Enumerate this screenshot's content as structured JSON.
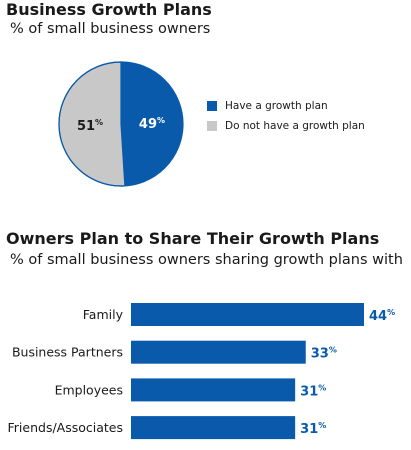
{
  "colors": {
    "blue": "#0a5aab",
    "gray": "#c8c8c8",
    "text": "#1a1a1a"
  },
  "chart_data": [
    {
      "type": "pie",
      "title": "Business Growth Plans",
      "subtitle": "% of small business owners",
      "slices": [
        {
          "name": "Have a growth plan",
          "value": 49,
          "label": "49%",
          "color": "#0a5aab"
        },
        {
          "name": "Do not have a growth plan",
          "value": 51,
          "label": "51%",
          "color": "#c8c8c8"
        }
      ],
      "legend_placement": "right"
    },
    {
      "type": "bar",
      "orientation": "horizontal",
      "title": "Owners Plan to Share Their Growth Plans",
      "subtitle": "% of small business owners sharing growth plans with",
      "categories": [
        "Family",
        "Business Partners",
        "Employees",
        "Friends/Associates"
      ],
      "values": [
        44,
        33,
        31,
        31
      ],
      "value_labels": [
        "44%",
        "33%",
        "31%",
        "31%"
      ],
      "xlim": [
        0,
        44
      ],
      "grid": false,
      "color": "#0a5aab"
    }
  ]
}
